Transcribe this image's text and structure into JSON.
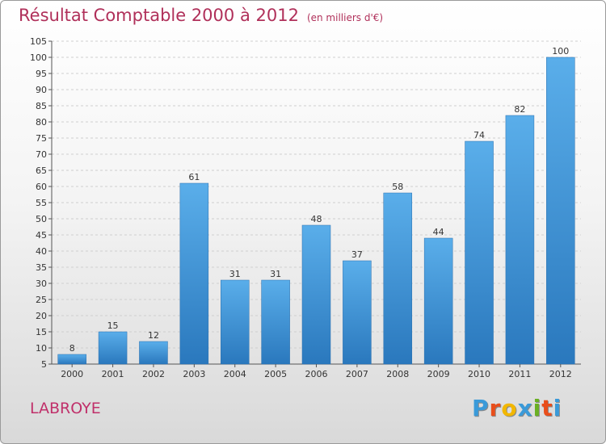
{
  "title": "Résultat Comptable 2000 à 2012",
  "subtitle": "(en milliers d'€)",
  "location": "LABROYE",
  "logo": {
    "letters": [
      {
        "ch": "P",
        "color": "#3a9ad9"
      },
      {
        "ch": "r",
        "color": "#e94e1b"
      },
      {
        "ch": "o",
        "color": "#f2b700"
      },
      {
        "ch": "x",
        "color": "#3a9ad9"
      },
      {
        "ch": "i",
        "color": "#6ab023"
      },
      {
        "ch": "t",
        "color": "#e94e1b"
      },
      {
        "ch": "i",
        "color": "#3a9ad9"
      }
    ]
  },
  "chart_data": {
    "type": "bar",
    "categories": [
      "2000",
      "2001",
      "2002",
      "2003",
      "2004",
      "2005",
      "2006",
      "2007",
      "2008",
      "2009",
      "2010",
      "2011",
      "2012"
    ],
    "values": [
      8,
      15,
      12,
      61,
      31,
      31,
      48,
      37,
      58,
      44,
      74,
      82,
      100
    ],
    "data_labels": [
      "8",
      "15",
      "12",
      "61",
      "31",
      "31",
      "48",
      "37",
      "58",
      "44",
      "74",
      "82",
      "100"
    ],
    "yticks": [
      "5",
      "10",
      "15",
      "20",
      "25",
      "30",
      "35",
      "40",
      "45",
      "50",
      "55",
      "60",
      "65",
      "70",
      "75",
      "80",
      "85",
      "90",
      "95",
      "100",
      "105"
    ],
    "ylim": [
      5,
      105
    ],
    "grid": true,
    "bar_color": "#3f8fd2"
  }
}
